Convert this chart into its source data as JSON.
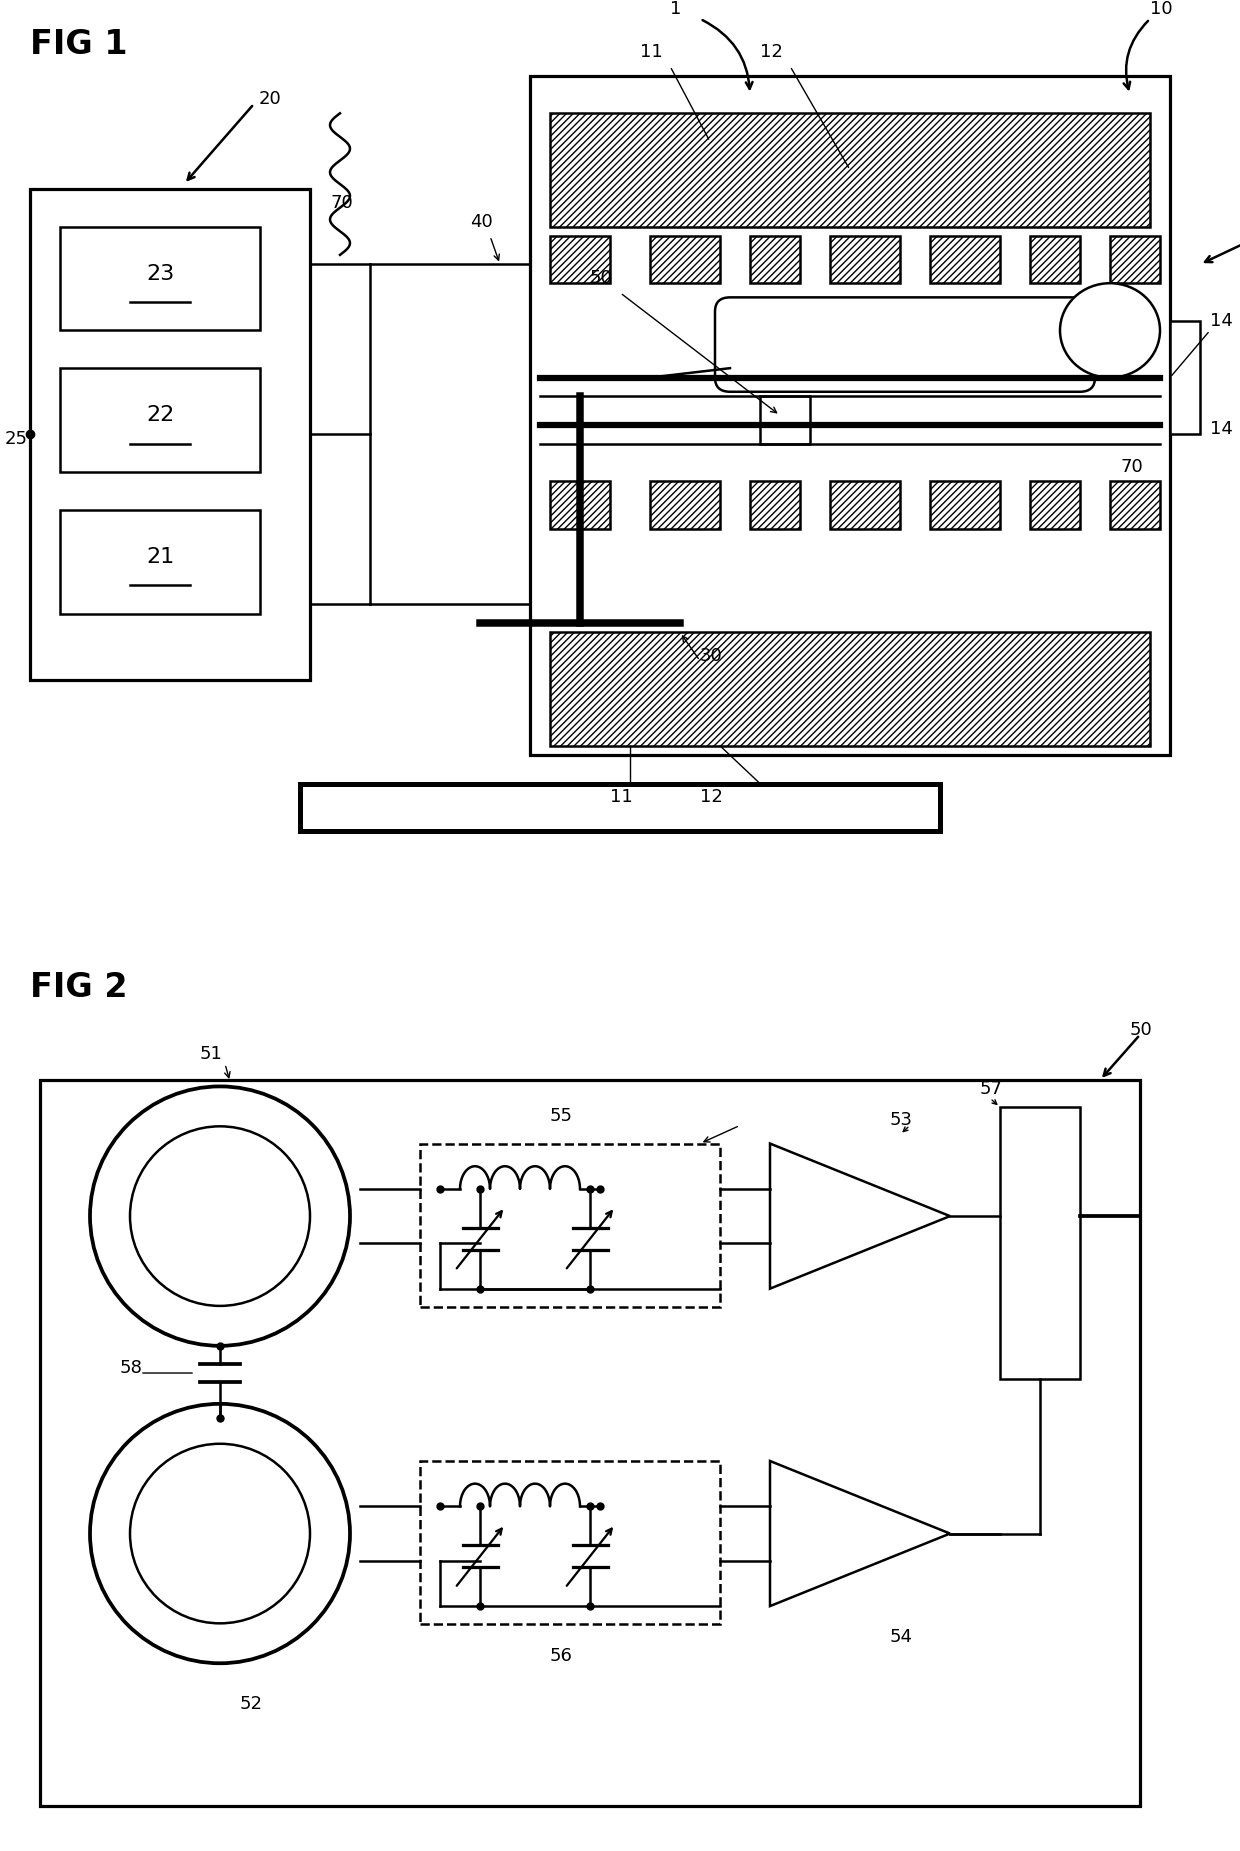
{
  "fig1_label": "FIG 1",
  "fig2_label": "FIG 2",
  "bg_color": "#ffffff",
  "line_color": "#000000",
  "ref_fontsize": 13,
  "fig_label_fontsize": 24,
  "lw": 1.8
}
